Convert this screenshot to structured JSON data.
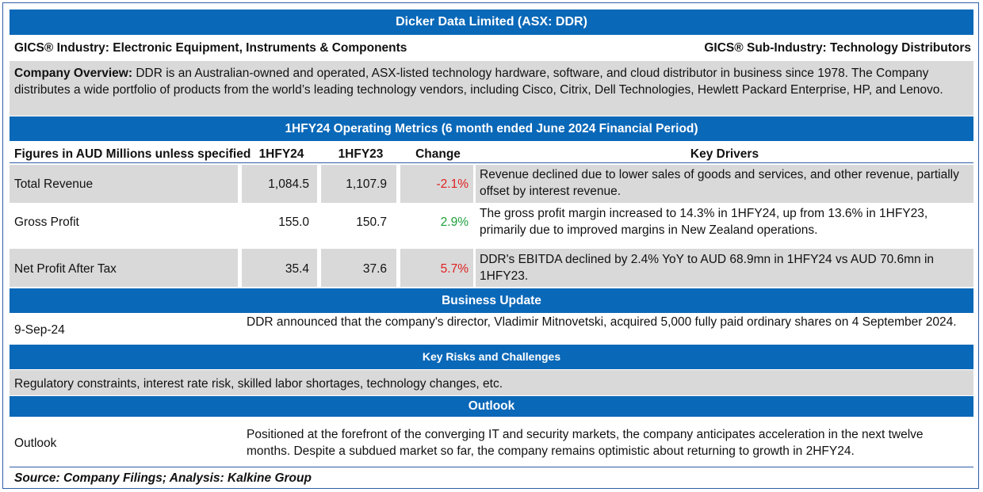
{
  "title": "Dicker Data Limited (ASX: DDR)",
  "gics_industry": "GICS® Industry: Electronic Equipment, Instruments & Components",
  "gics_sub_industry": "GICS® Sub-Industry: Technology Distributors",
  "overview": {
    "label": "Company Overview:",
    "text": " DDR is an Australian-owned and operated, ASX-listed technology hardware, software, and cloud distributor in business since 1978. The Company distributes a wide portfolio of products from the world’s leading technology vendors, including Cisco, Citrix, Dell Technologies, Hewlett Packard Enterprise, HP, and Lenovo."
  },
  "metrics_header": "1HFY24 Operating Metrics (6 month ended June 2024 Financial Period)",
  "columns": {
    "figures": "Figures in AUD Millions  unless specified",
    "current": "1HFY24",
    "previous": "1HFY23",
    "change": "Change",
    "drivers": "Key Drivers"
  },
  "rows": [
    {
      "label": "Total Revenue",
      "current": "1,084.5",
      "previous": "1,107.9",
      "change": "-2.1%",
      "change_color": "#e02020",
      "driver": "Revenue declined due to lower sales of goods and services, and other revenue, partially offset by interest revenue."
    },
    {
      "label": "Gross Profit",
      "current": "155.0",
      "previous": "150.7",
      "change": "2.9%",
      "change_color": "#1e9e3a",
      "driver": "The gross profit margin increased to 14.3% in 1HFY24, up from 13.6% in 1HFY23, primarily due to improved margins in New Zealand operations."
    },
    {
      "label": "Net Profit After Tax",
      "current": "35.4",
      "previous": "37.6",
      "change": "5.7%",
      "change_color": "#e02020",
      "driver": " DDR's EBITDA declined by 2.4% YoY to AUD 68.9mn in 1HFY24 vs AUD 70.6mn in 1HFY23."
    }
  ],
  "business_update": {
    "header": "Business Update",
    "date": "9-Sep-24",
    "text": " DDR announced that the company's director, Vladimir Mitnovetski, acquired 5,000 fully paid ordinary shares on 4 September 2024."
  },
  "risks": {
    "header": "Key Risks and Challenges",
    "text": " Regulatory constraints, interest rate risk, skilled labor shortages, technology changes, etc."
  },
  "outlook": {
    "header": "Outlook",
    "label": "Outlook",
    "text": "Positioned at the forefront of the converging IT and security markets, the company anticipates acceleration in the next twelve months. Despite a subdued market so far, the company remains optimistic about returning to growth in 2HFY24."
  },
  "source": "Source: Company Filings; Analysis: Kalkine Group"
}
